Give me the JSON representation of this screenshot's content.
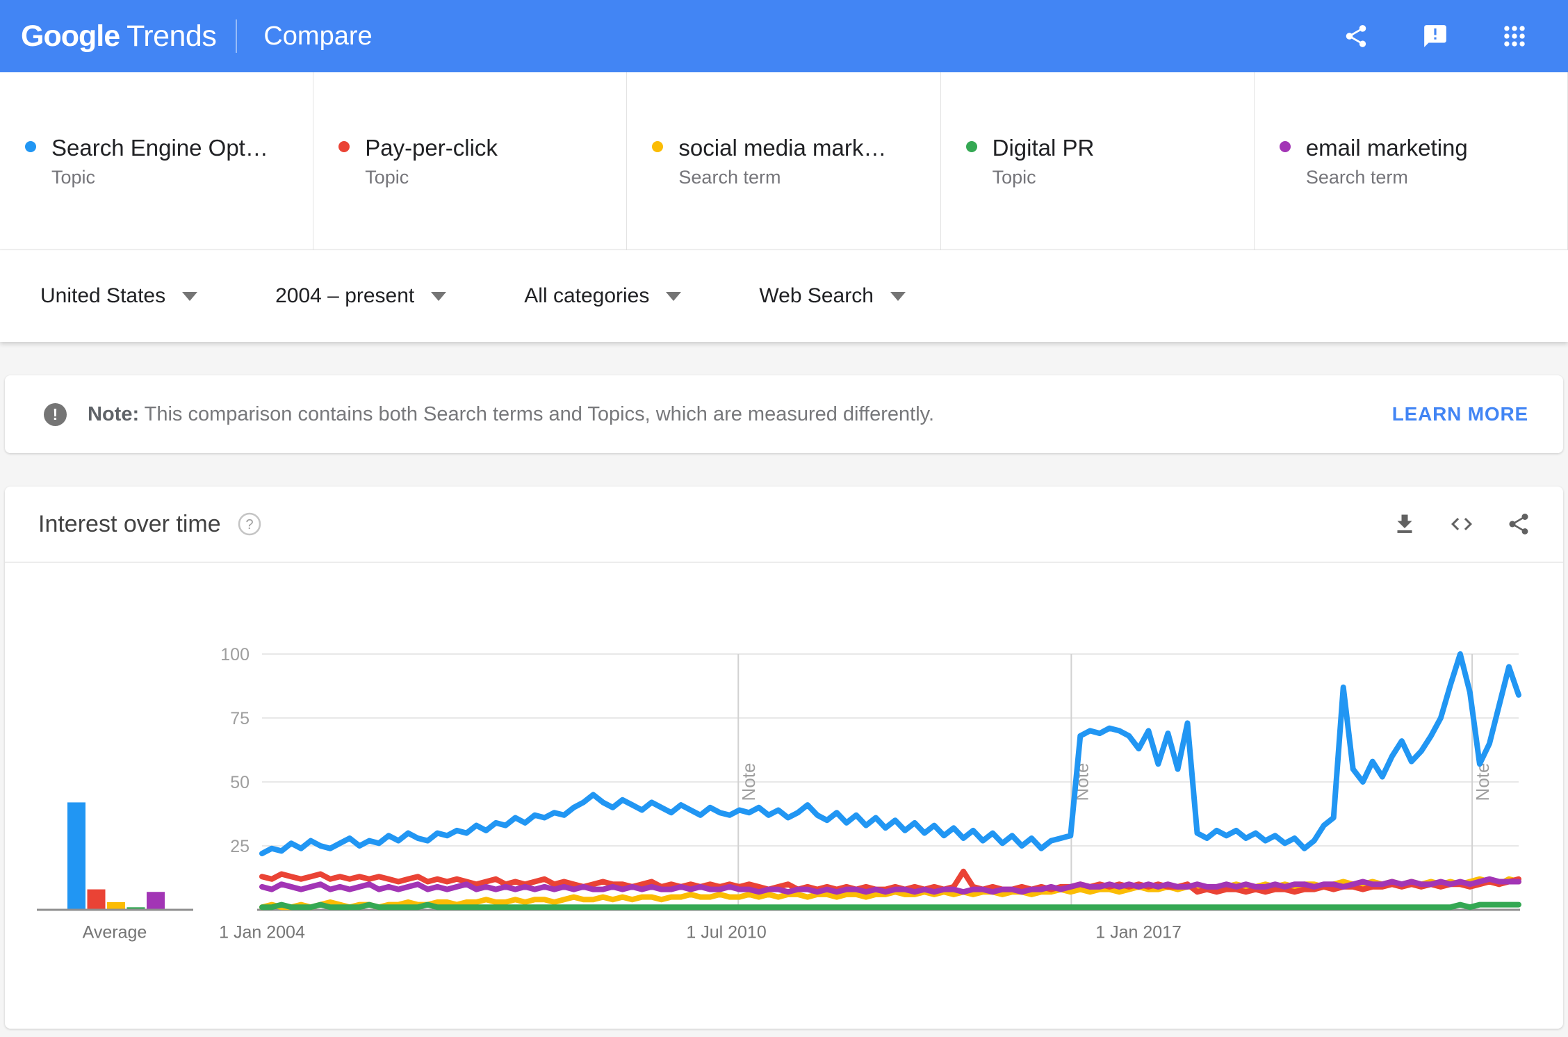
{
  "header": {
    "logo_primary": "Google",
    "logo_secondary": "Trends",
    "page_title": "Compare",
    "icons": [
      "share-icon",
      "feedback-icon",
      "apps-grid-icon"
    ],
    "accent_color": "#4285f4"
  },
  "terms": [
    {
      "label": "Search Engine Opt…",
      "type": "Topic",
      "color": "#2196f3"
    },
    {
      "label": "Pay-per-click",
      "type": "Topic",
      "color": "#ea4335"
    },
    {
      "label": "social media mark…",
      "type": "Search term",
      "color": "#fbbc04"
    },
    {
      "label": "Digital PR",
      "type": "Topic",
      "color": "#34a853"
    },
    {
      "label": "email marketing",
      "type": "Search term",
      "color": "#a235b5"
    }
  ],
  "filters": [
    {
      "label": "United States"
    },
    {
      "label": "2004 – present"
    },
    {
      "label": "All categories"
    },
    {
      "label": "Web Search"
    }
  ],
  "note_banner": {
    "icon": "exclamation-icon",
    "prefix": "Note:",
    "text": " This comparison contains both Search terms and Topics, which are measured differently.",
    "action": "LEARN MORE"
  },
  "chart_card": {
    "title": "Interest over time",
    "icons": [
      "help-icon",
      "download-icon",
      "embed-icon",
      "share-icon"
    ]
  },
  "chart_data": {
    "type": "line",
    "title": "Interest over time",
    "xlabel": "",
    "ylabel": "",
    "ylim": [
      0,
      100
    ],
    "grid": true,
    "y_axis": {
      "ticks": [
        25,
        50,
        75,
        100
      ]
    },
    "x_axis": {
      "ticks": [
        {
          "label": "1 Jan 2004",
          "pos": 0.0
        },
        {
          "label": "1 Jul 2010",
          "pos": 0.3695
        },
        {
          "label": "1 Jan 2017",
          "pos": 0.6975
        }
      ]
    },
    "note_label": "Note",
    "note_positions": [
      0.379,
      0.644,
      0.963
    ],
    "average_bars": {
      "label": "Average",
      "values": [
        42,
        8,
        3,
        1,
        7
      ]
    },
    "draw_order": [
      2,
      1,
      4,
      3,
      0
    ],
    "series": [
      {
        "name": "Search Engine Opt… (Topic)",
        "color": "#2196f3",
        "values": [
          22,
          24,
          23,
          26,
          24,
          27,
          25,
          24,
          26,
          28,
          25,
          27,
          26,
          29,
          27,
          30,
          28,
          27,
          30,
          29,
          31,
          30,
          33,
          31,
          34,
          33,
          36,
          34,
          37,
          36,
          38,
          37,
          40,
          42,
          45,
          42,
          40,
          43,
          41,
          39,
          42,
          40,
          38,
          41,
          39,
          37,
          40,
          38,
          37,
          39,
          38,
          40,
          37,
          39,
          36,
          38,
          41,
          37,
          35,
          38,
          34,
          37,
          33,
          36,
          32,
          35,
          31,
          34,
          30,
          33,
          29,
          32,
          28,
          31,
          27,
          30,
          26,
          29,
          25,
          28,
          24,
          27,
          28,
          29,
          68,
          70,
          69,
          71,
          70,
          68,
          63,
          70,
          57,
          69,
          55,
          73,
          30,
          28,
          31,
          29,
          31,
          28,
          30,
          27,
          29,
          26,
          28,
          24,
          27,
          33,
          36,
          87,
          55,
          50,
          58,
          52,
          60,
          66,
          58,
          62,
          68,
          75,
          88,
          100,
          85,
          57,
          65,
          80,
          95,
          84
        ]
      },
      {
        "name": "Pay-per-click (Topic)",
        "color": "#ea4335",
        "values": [
          13,
          12,
          14,
          13,
          12,
          13,
          14,
          12,
          13,
          12,
          13,
          12,
          13,
          12,
          11,
          12,
          13,
          11,
          12,
          11,
          12,
          11,
          10,
          11,
          12,
          10,
          11,
          10,
          11,
          12,
          10,
          11,
          10,
          9,
          10,
          11,
          10,
          10,
          9,
          10,
          11,
          9,
          10,
          9,
          10,
          9,
          10,
          9,
          10,
          9,
          10,
          9,
          8,
          9,
          10,
          8,
          9,
          8,
          9,
          8,
          9,
          8,
          9,
          8,
          8,
          9,
          8,
          9,
          8,
          9,
          8,
          9,
          15,
          9,
          8,
          9,
          8,
          8,
          9,
          8,
          9,
          8,
          9,
          9,
          10,
          9,
          10,
          9,
          10,
          9,
          10,
          9,
          10,
          9,
          9,
          10,
          7,
          8,
          7,
          8,
          8,
          7,
          8,
          7,
          8,
          8,
          7,
          8,
          8,
          9,
          8,
          9,
          9,
          8,
          9,
          9,
          10,
          9,
          10,
          9,
          10,
          9,
          10,
          10,
          9,
          10,
          11,
          10,
          11,
          12
        ]
      },
      {
        "name": "social media mark… (Search term)",
        "color": "#fbbc04",
        "values": [
          1,
          2,
          1,
          1,
          2,
          1,
          2,
          3,
          2,
          1,
          2,
          2,
          1,
          2,
          2,
          3,
          2,
          2,
          3,
          3,
          2,
          3,
          3,
          4,
          3,
          3,
          4,
          3,
          4,
          4,
          3,
          4,
          5,
          4,
          4,
          5,
          4,
          5,
          4,
          5,
          5,
          4,
          5,
          5,
          6,
          5,
          5,
          6,
          5,
          5,
          6,
          5,
          6,
          5,
          6,
          6,
          5,
          6,
          6,
          5,
          6,
          6,
          5,
          6,
          6,
          7,
          6,
          6,
          7,
          6,
          7,
          6,
          7,
          6,
          7,
          7,
          6,
          7,
          7,
          6,
          7,
          7,
          8,
          7,
          8,
          7,
          8,
          8,
          7,
          8,
          9,
          8,
          8,
          9,
          8,
          9,
          9,
          8,
          9,
          9,
          10,
          9,
          9,
          10,
          9,
          10,
          9,
          10,
          10,
          9,
          10,
          11,
          10,
          10,
          11,
          10,
          11,
          10,
          11,
          10,
          11,
          10,
          11,
          10,
          11,
          12,
          11,
          10,
          12,
          11
        ]
      },
      {
        "name": "Digital PR (Topic)",
        "color": "#34a853",
        "values": [
          1,
          1,
          2,
          1,
          1,
          1,
          2,
          1,
          1,
          1,
          1,
          2,
          1,
          1,
          1,
          1,
          1,
          2,
          1,
          1,
          1,
          1,
          1,
          1,
          1,
          1,
          1,
          1,
          1,
          1,
          1,
          1,
          1,
          1,
          1,
          1,
          1,
          1,
          1,
          1,
          1,
          1,
          1,
          1,
          1,
          1,
          1,
          1,
          1,
          1,
          1,
          1,
          1,
          1,
          1,
          1,
          1,
          1,
          1,
          1,
          1,
          1,
          1,
          1,
          1,
          1,
          1,
          1,
          1,
          1,
          1,
          1,
          1,
          1,
          1,
          1,
          1,
          1,
          1,
          1,
          1,
          1,
          1,
          1,
          1,
          1,
          1,
          1,
          1,
          1,
          1,
          1,
          1,
          1,
          1,
          1,
          1,
          1,
          1,
          1,
          1,
          1,
          1,
          1,
          1,
          1,
          1,
          1,
          1,
          1,
          1,
          1,
          1,
          1,
          1,
          1,
          1,
          1,
          1,
          1,
          1,
          1,
          1,
          2,
          1,
          2,
          2,
          2,
          2,
          2
        ]
      },
      {
        "name": "email marketing (Search term)",
        "color": "#a235b5",
        "values": [
          9,
          8,
          10,
          9,
          8,
          9,
          10,
          8,
          9,
          8,
          9,
          10,
          8,
          9,
          8,
          9,
          10,
          8,
          9,
          8,
          9,
          10,
          8,
          9,
          8,
          9,
          8,
          9,
          8,
          9,
          8,
          9,
          8,
          9,
          8,
          8,
          9,
          8,
          9,
          8,
          9,
          8,
          8,
          9,
          8,
          9,
          8,
          8,
          9,
          8,
          8,
          7,
          8,
          8,
          7,
          8,
          8,
          7,
          8,
          7,
          8,
          8,
          7,
          8,
          7,
          8,
          8,
          7,
          8,
          7,
          8,
          8,
          7,
          8,
          8,
          7,
          8,
          8,
          7,
          8,
          8,
          9,
          8,
          9,
          10,
          9,
          9,
          10,
          9,
          10,
          9,
          10,
          9,
          10,
          9,
          9,
          10,
          9,
          9,
          10,
          9,
          10,
          9,
          9,
          10,
          9,
          10,
          10,
          9,
          10,
          10,
          9,
          10,
          11,
          10,
          10,
          11,
          10,
          11,
          10,
          10,
          11,
          10,
          11,
          10,
          11,
          12,
          11,
          11,
          11
        ]
      }
    ]
  }
}
